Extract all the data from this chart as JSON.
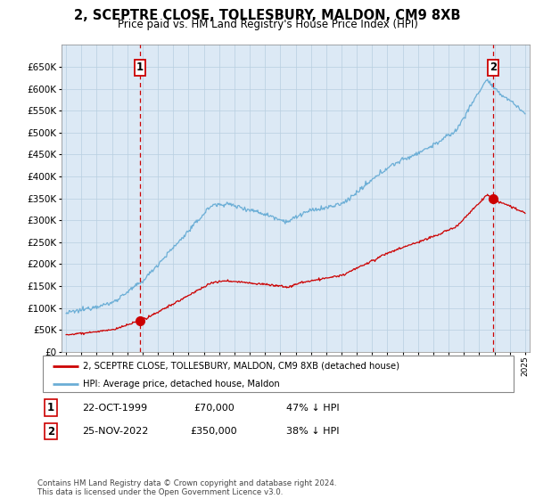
{
  "title": "2, SCEPTRE CLOSE, TOLLESBURY, MALDON, CM9 8XB",
  "subtitle": "Price paid vs. HM Land Registry's House Price Index (HPI)",
  "legend_line1": "2, SCEPTRE CLOSE, TOLLESBURY, MALDON, CM9 8XB (detached house)",
  "legend_line2": "HPI: Average price, detached house, Maldon",
  "transaction1_label": "1",
  "transaction1_date": "22-OCT-1999",
  "transaction1_price": "£70,000",
  "transaction1_hpi": "47% ↓ HPI",
  "transaction2_label": "2",
  "transaction2_date": "25-NOV-2022",
  "transaction2_price": "£350,000",
  "transaction2_hpi": "38% ↓ HPI",
  "footnote": "Contains HM Land Registry data © Crown copyright and database right 2024.\nThis data is licensed under the Open Government Licence v3.0.",
  "hpi_color": "#6baed6",
  "price_color": "#cc0000",
  "vline_color": "#cc0000",
  "background_color": "#ffffff",
  "chart_bg_color": "#dce9f5",
  "grid_color": "#b8cfe0",
  "ylim": [
    0,
    700000
  ],
  "yticks": [
    0,
    50000,
    100000,
    150000,
    200000,
    250000,
    300000,
    350000,
    400000,
    450000,
    500000,
    550000,
    600000,
    650000
  ],
  "xlim_start": 1994.7,
  "xlim_end": 2025.3,
  "transaction1_x": 1999.82,
  "transaction2_x": 2022.91,
  "transaction1_y": 70000,
  "transaction2_y": 350000
}
